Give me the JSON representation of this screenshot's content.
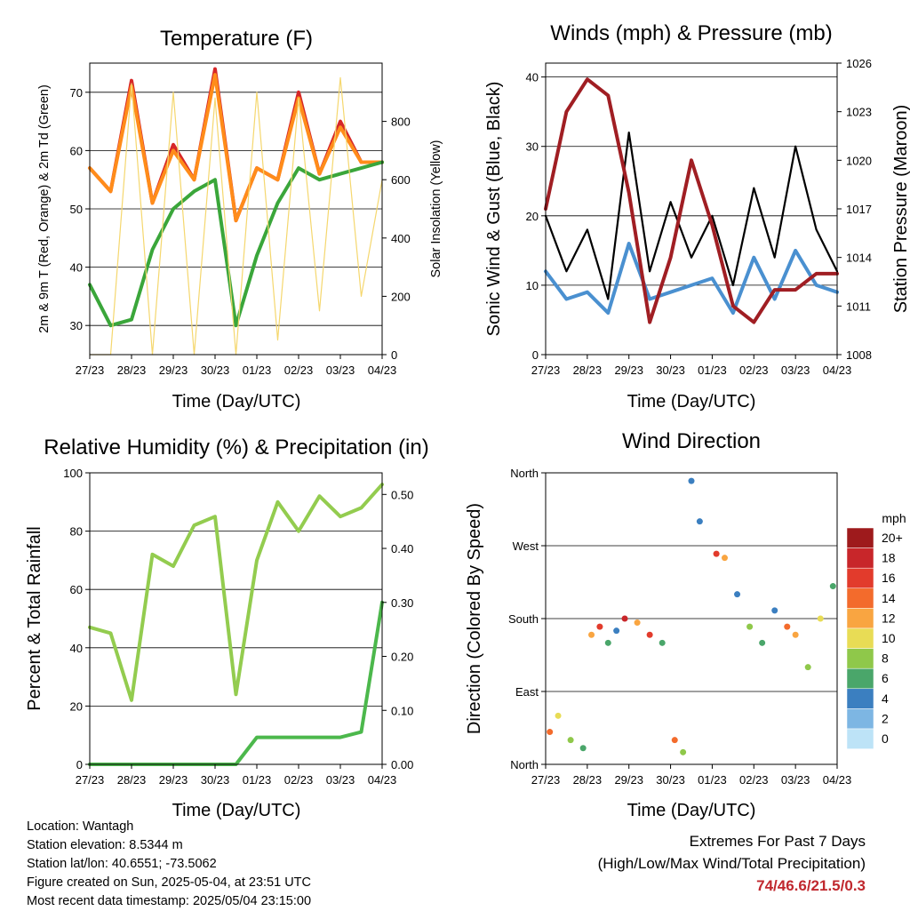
{
  "x_ticks": [
    "27/23",
    "28/23",
    "29/23",
    "30/23",
    "01/23",
    "02/23",
    "03/23",
    "04/23"
  ],
  "x_label": "Time (Day/UTC)",
  "panels": {
    "temperature": {
      "title": "Temperature (F)",
      "ylabel_left": "2m & 9m T (Red, Orange) & 2m Td (Green)",
      "ylabel_right": "Solar Insolation (Yellow)",
      "yticks_left": [
        "30",
        "40",
        "50",
        "60",
        "70"
      ],
      "yticks_right": [
        "0",
        "200",
        "400",
        "600",
        "800"
      ]
    },
    "winds": {
      "title": "Winds (mph) & Pressure (mb)",
      "ylabel_left": "Sonic Wind & Gust (Blue, Black)",
      "ylabel_right": "Station Pressure (Maroon)",
      "yticks_left": [
        "0",
        "10",
        "20",
        "30",
        "40"
      ],
      "yticks_right": [
        "1008",
        "1011",
        "1014",
        "1017",
        "1020",
        "1023",
        "1026"
      ]
    },
    "humidity": {
      "title": "Relative Humidity (%) & Precipitation (in)",
      "ylabel_left": "Percent & Total Rainfall",
      "yticks_left": [
        "0",
        "20",
        "40",
        "60",
        "80",
        "100"
      ],
      "yticks_right": [
        "0.00",
        "0.10",
        "0.20",
        "0.30",
        "0.40",
        "0.50"
      ]
    },
    "direction": {
      "title": "Wind Direction",
      "ylabel_left": "Direction (Colored By Speed)",
      "yticks_left": [
        "North",
        "East",
        "South",
        "West",
        "North"
      ],
      "legend_title": "mph",
      "legend_labels": [
        "20+",
        "18",
        "16",
        "14",
        "12",
        "10",
        "8",
        "6",
        "4",
        "2",
        "0"
      ],
      "legend_colors": [
        "#9e1a1c",
        "#c8262a",
        "#e23b2c",
        "#f36b2c",
        "#f9a541",
        "#e8dc55",
        "#8fc84a",
        "#4aa66a",
        "#3b7fc0",
        "#7db6e3",
        "#bde3f7"
      ]
    }
  },
  "chart_data": [
    {
      "type": "line",
      "title": "Temperature (F)",
      "xlabel": "Time (Day/UTC)",
      "ylabel": "2m & 9m T (Red, Orange) & 2m Td (Green)",
      "ylabel_right": "Solar Insolation (Yellow)",
      "x_days": [
        0,
        0.5,
        1,
        1.5,
        2,
        2.5,
        3,
        3.5,
        4,
        4.5,
        5,
        5.5,
        6,
        6.5,
        7
      ],
      "ylim": [
        25,
        75
      ],
      "ylim_right": [
        0,
        1000
      ],
      "series": [
        {
          "color": "#d62728",
          "values": [
            57,
            53,
            72,
            51,
            61,
            55,
            74,
            48,
            57,
            55,
            70,
            56,
            65,
            58,
            58
          ]
        },
        {
          "color": "#ff8c1a",
          "values": [
            57,
            53,
            71,
            51,
            60,
            55,
            73,
            48,
            57,
            55,
            69,
            56,
            64,
            58,
            58
          ]
        },
        {
          "color": "#3aa63a",
          "values": [
            37,
            30,
            31,
            43,
            50,
            53,
            55,
            30,
            42,
            51,
            57,
            55,
            56,
            57,
            58
          ]
        },
        {
          "color": "#f5d76e",
          "axis": "right",
          "values": [
            0,
            0,
            930,
            0,
            900,
            0,
            880,
            0,
            900,
            50,
            880,
            150,
            950,
            200,
            600
          ]
        }
      ]
    },
    {
      "type": "line",
      "title": "Winds (mph) & Pressure (mb)",
      "xlabel": "Time (Day/UTC)",
      "ylabel": "Sonic Wind & Gust (Blue, Black)",
      "ylabel_right": "Station Pressure (Maroon)",
      "x_days": [
        0,
        0.5,
        1,
        1.5,
        2,
        2.5,
        3,
        3.5,
        4,
        4.5,
        5,
        5.5,
        6,
        6.5,
        7
      ],
      "ylim": [
        0,
        42
      ],
      "ylim_right": [
        1008,
        1026
      ],
      "series": [
        {
          "color": "#4a90d0",
          "values": [
            12,
            8,
            9,
            6,
            16,
            8,
            9,
            10,
            11,
            6,
            14,
            8,
            15,
            10,
            9
          ]
        },
        {
          "color": "#000000",
          "values": [
            20,
            12,
            18,
            8,
            32,
            12,
            22,
            14,
            20,
            10,
            24,
            14,
            30,
            18,
            12
          ]
        },
        {
          "color": "#a01e23",
          "axis": "right",
          "values": [
            1017,
            1023,
            1025,
            1024,
            1018,
            1010,
            1014,
            1020,
            1016,
            1011,
            1010,
            1012,
            1012,
            1013,
            1013
          ]
        }
      ]
    },
    {
      "type": "line",
      "title": "Relative Humidity (%) & Precipitation (in)",
      "xlabel": "Time (Day/UTC)",
      "ylabel": "Percent & Total Rainfall",
      "x_days": [
        0,
        0.5,
        1,
        1.5,
        2,
        2.5,
        3,
        3.5,
        4,
        4.5,
        5,
        5.5,
        6,
        6.5,
        7
      ],
      "ylim": [
        0,
        100
      ],
      "ylim_right": [
        0,
        0.54
      ],
      "series": [
        {
          "color": "#93cc4f",
          "values": [
            47,
            45,
            22,
            72,
            68,
            82,
            85,
            24,
            70,
            90,
            80,
            92,
            85,
            88,
            96
          ]
        },
        {
          "color": "#4cb84c",
          "axis": "right",
          "values": [
            0,
            0,
            0,
            0,
            0,
            0,
            0,
            0,
            0.05,
            0.05,
            0.05,
            0.05,
            0.05,
            0.06,
            0.3
          ]
        }
      ]
    },
    {
      "type": "scatter",
      "title": "Wind Direction",
      "xlabel": "Time (Day/UTC)",
      "ylabel": "Direction (Colored By Speed)",
      "ylim": [
        0,
        360
      ],
      "ytick_values": [
        0,
        90,
        180,
        270,
        360
      ],
      "legend": "right",
      "points": [
        {
          "x": 0.1,
          "dir": 320,
          "spd": 14
        },
        {
          "x": 0.3,
          "dir": 300,
          "spd": 10
        },
        {
          "x": 0.6,
          "dir": 330,
          "spd": 8
        },
        {
          "x": 0.9,
          "dir": 340,
          "spd": 5
        },
        {
          "x": 1.1,
          "dir": 200,
          "spd": 12
        },
        {
          "x": 1.3,
          "dir": 190,
          "spd": 16
        },
        {
          "x": 1.5,
          "dir": 210,
          "spd": 6
        },
        {
          "x": 1.7,
          "dir": 195,
          "spd": 4
        },
        {
          "x": 1.9,
          "dir": 180,
          "spd": 18
        },
        {
          "x": 2.2,
          "dir": 185,
          "spd": 12
        },
        {
          "x": 2.5,
          "dir": 200,
          "spd": 16
        },
        {
          "x": 2.8,
          "dir": 210,
          "spd": 6
        },
        {
          "x": 3.1,
          "dir": 330,
          "spd": 14
        },
        {
          "x": 3.3,
          "dir": 345,
          "spd": 8
        },
        {
          "x": 3.5,
          "dir": 10,
          "spd": 4
        },
        {
          "x": 3.7,
          "dir": 60,
          "spd": 3
        },
        {
          "x": 4.1,
          "dir": 100,
          "spd": 16
        },
        {
          "x": 4.3,
          "dir": 105,
          "spd": 12
        },
        {
          "x": 4.6,
          "dir": 150,
          "spd": 4
        },
        {
          "x": 4.9,
          "dir": 190,
          "spd": 8
        },
        {
          "x": 5.2,
          "dir": 210,
          "spd": 6
        },
        {
          "x": 5.5,
          "dir": 170,
          "spd": 4
        },
        {
          "x": 5.8,
          "dir": 190,
          "spd": 14
        },
        {
          "x": 6.0,
          "dir": 200,
          "spd": 12
        },
        {
          "x": 6.3,
          "dir": 240,
          "spd": 8
        },
        {
          "x": 6.6,
          "dir": 180,
          "spd": 10
        },
        {
          "x": 6.9,
          "dir": 140,
          "spd": 6
        }
      ]
    }
  ],
  "info": {
    "location": "Location: Wantagh",
    "elevation": "Station elevation: 8.5344 m",
    "latlon": "Station lat/lon: 40.6551; -73.5062",
    "created": "Figure created on Sun, 2025-05-04, at 23:51 UTC",
    "timestamp": "Most recent data timestamp: 2025/05/04 23:15:00"
  },
  "extremes": {
    "title": "Extremes For Past 7 Days",
    "subtitle": "(High/Low/Max Wind/Total Precipitation)",
    "values": "74/46.6/21.5/0.3"
  }
}
